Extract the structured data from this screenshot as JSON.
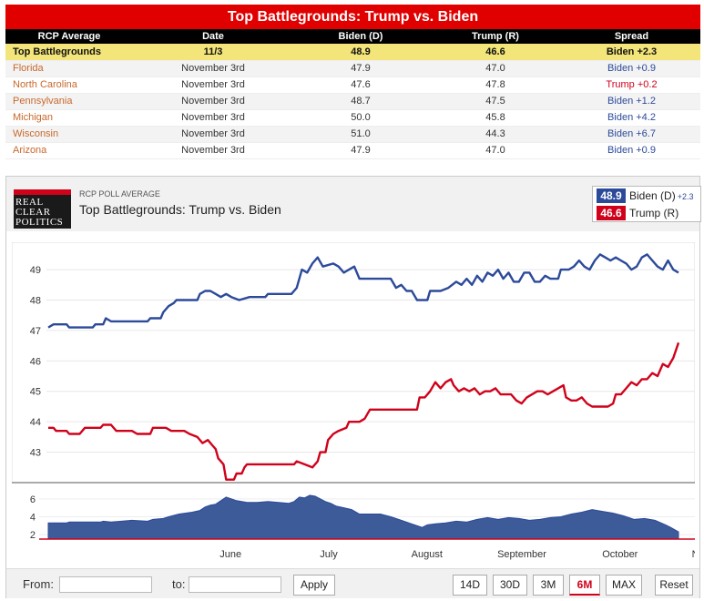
{
  "table": {
    "title": "Top Battlegrounds: Trump vs. Biden",
    "headers": [
      "RCP Average",
      "Date",
      "Biden (D)",
      "Trump (R)",
      "Spread"
    ],
    "average": {
      "race": "Top Battlegrounds",
      "date": "11/3",
      "biden": "48.9",
      "trump": "46.6",
      "spread": "Biden +2.3"
    },
    "rows": [
      {
        "race": "Florida",
        "date": "November 3rd",
        "biden": "47.9",
        "trump": "47.0",
        "spread": "Biden +0.9",
        "leader": "biden"
      },
      {
        "race": "North Carolina",
        "date": "November 3rd",
        "biden": "47.6",
        "trump": "47.8",
        "spread": "Trump +0.2",
        "leader": "trump"
      },
      {
        "race": "Pennsylvania",
        "date": "November 3rd",
        "biden": "48.7",
        "trump": "47.5",
        "spread": "Biden +1.2",
        "leader": "biden"
      },
      {
        "race": "Michigan",
        "date": "November 3rd",
        "biden": "50.0",
        "trump": "45.8",
        "spread": "Biden +4.2",
        "leader": "biden"
      },
      {
        "race": "Wisconsin",
        "date": "November 3rd",
        "biden": "51.0",
        "trump": "44.3",
        "spread": "Biden +6.7",
        "leader": "biden"
      },
      {
        "race": "Arizona",
        "date": "November 3rd",
        "biden": "47.9",
        "trump": "47.0",
        "spread": "Biden +0.9",
        "leader": "biden"
      }
    ]
  },
  "chart_header": {
    "logo": [
      "REAL",
      "CLEAR",
      "POLITICS"
    ],
    "label": "RCP POLL AVERAGE",
    "title": "Top Battlegrounds: Trump vs. Biden",
    "legend": {
      "biden_value": "48.9",
      "biden_label": "Biden (D)",
      "biden_spread": "+2.3",
      "trump_value": "46.6",
      "trump_label": "Trump (R)"
    }
  },
  "controls": {
    "from_label": "From:",
    "to_label": "to:",
    "apply": "Apply",
    "ranges": [
      "14D",
      "30D",
      "3M",
      "6M",
      "MAX"
    ],
    "active_range": "6M",
    "reset": "Reset"
  },
  "colors": {
    "biden": "#2c4a9a",
    "trump": "#d0021b",
    "spread_fill": "#3d5a99"
  },
  "chart_data": {
    "type": "line",
    "title": "Top Battlegrounds: Trump vs. Biden",
    "x_month_labels": [
      "June",
      "July",
      "August",
      "September",
      "October",
      "November"
    ],
    "main_ylim": [
      42,
      49.9
    ],
    "main_yticks": [
      43,
      44,
      45,
      46,
      47,
      48,
      49
    ],
    "spread_ylim": [
      1.5,
      7
    ],
    "spread_yticks": [
      2,
      4,
      6
    ],
    "x_day_range": [
      0,
      183
    ],
    "month_label_days": [
      30,
      61,
      92,
      122,
      153,
      183
    ],
    "series": [
      {
        "name": "Biden (D)",
        "points": [
          [
            0,
            47.1
          ],
          [
            2,
            47.2
          ],
          [
            7,
            47.2
          ],
          [
            8,
            47.1
          ],
          [
            17,
            47.1
          ],
          [
            18,
            47.2
          ],
          [
            21,
            47.2
          ],
          [
            22,
            47.4
          ],
          [
            24,
            47.3
          ],
          [
            38,
            47.3
          ],
          [
            39,
            47.4
          ],
          [
            43,
            47.4
          ],
          [
            44,
            47.6
          ],
          [
            46,
            47.8
          ],
          [
            48,
            47.9
          ],
          [
            49,
            48.0
          ],
          [
            57,
            48.0
          ],
          [
            58,
            48.2
          ],
          [
            60,
            48.3
          ],
          [
            62,
            48.3
          ],
          [
            64,
            48.2
          ],
          [
            66,
            48.1
          ],
          [
            68,
            48.2
          ],
          [
            70,
            48.1
          ],
          [
            73,
            48.0
          ],
          [
            77,
            48.1
          ],
          [
            83,
            48.1
          ],
          [
            84,
            48.2
          ],
          [
            93,
            48.2
          ],
          [
            95,
            48.4
          ],
          [
            97,
            49.0
          ],
          [
            99,
            48.9
          ],
          [
            101,
            49.2
          ],
          [
            103,
            49.4
          ],
          [
            105,
            49.1
          ],
          [
            109,
            49.2
          ],
          [
            111,
            49.1
          ],
          [
            113,
            48.9
          ],
          [
            115,
            49.0
          ],
          [
            117,
            49.1
          ],
          [
            119,
            48.7
          ],
          [
            131,
            48.7
          ],
          [
            133,
            48.4
          ],
          [
            135,
            48.5
          ],
          [
            137,
            48.3
          ],
          [
            139,
            48.3
          ],
          [
            141,
            48.0
          ],
          [
            145,
            48.0
          ],
          [
            146,
            48.3
          ],
          [
            150,
            48.3
          ],
          [
            153,
            48.4
          ],
          [
            156,
            48.6
          ],
          [
            158,
            48.5
          ],
          [
            160,
            48.7
          ],
          [
            162,
            48.5
          ],
          [
            164,
            48.8
          ],
          [
            166,
            48.6
          ],
          [
            168,
            48.9
          ],
          [
            170,
            48.8
          ],
          [
            172,
            49.0
          ],
          [
            174,
            48.7
          ],
          [
            176,
            48.9
          ],
          [
            178,
            48.6
          ],
          [
            180,
            48.6
          ],
          [
            182,
            48.9
          ],
          [
            184,
            48.9
          ],
          [
            186,
            48.6
          ],
          [
            188,
            48.6
          ],
          [
            190,
            48.8
          ],
          [
            192,
            48.7
          ],
          [
            195,
            48.7
          ],
          [
            196,
            49.0
          ],
          [
            199,
            49.0
          ],
          [
            201,
            49.1
          ],
          [
            203,
            49.3
          ],
          [
            205,
            49.1
          ],
          [
            207,
            49.0
          ],
          [
            209,
            49.3
          ],
          [
            211,
            49.5
          ],
          [
            213,
            49.4
          ],
          [
            215,
            49.3
          ],
          [
            217,
            49.4
          ],
          [
            219,
            49.3
          ],
          [
            221,
            49.2
          ],
          [
            223,
            49.0
          ],
          [
            225,
            49.1
          ],
          [
            227,
            49.4
          ],
          [
            229,
            49.5
          ],
          [
            231,
            49.3
          ],
          [
            233,
            49.1
          ],
          [
            235,
            49.0
          ],
          [
            237,
            49.3
          ],
          [
            239,
            49.0
          ],
          [
            241,
            48.9
          ]
        ]
      },
      {
        "name": "Trump (R)",
        "points": [
          [
            0,
            43.8
          ],
          [
            2,
            43.8
          ],
          [
            3,
            43.7
          ],
          [
            7,
            43.7
          ],
          [
            8,
            43.6
          ],
          [
            12,
            43.6
          ],
          [
            14,
            43.8
          ],
          [
            20,
            43.8
          ],
          [
            21,
            43.9
          ],
          [
            24,
            43.9
          ],
          [
            26,
            43.7
          ],
          [
            32,
            43.7
          ],
          [
            34,
            43.6
          ],
          [
            39,
            43.6
          ],
          [
            40,
            43.8
          ],
          [
            45,
            43.8
          ],
          [
            47,
            43.7
          ],
          [
            52,
            43.7
          ],
          [
            54,
            43.6
          ],
          [
            57,
            43.5
          ],
          [
            59,
            43.3
          ],
          [
            61,
            43.4
          ],
          [
            63,
            43.2
          ],
          [
            64,
            43.1
          ],
          [
            65,
            42.8
          ],
          [
            67,
            42.6
          ],
          [
            68,
            42.1
          ],
          [
            71,
            42.1
          ],
          [
            72,
            42.3
          ],
          [
            74,
            42.3
          ],
          [
            75,
            42.5
          ],
          [
            76,
            42.6
          ],
          [
            94,
            42.6
          ],
          [
            95,
            42.7
          ],
          [
            98,
            42.6
          ],
          [
            101,
            42.5
          ],
          [
            103,
            42.7
          ],
          [
            104,
            43.0
          ],
          [
            106,
            43.0
          ],
          [
            107,
            43.4
          ],
          [
            109,
            43.6
          ],
          [
            111,
            43.7
          ],
          [
            114,
            43.8
          ],
          [
            115,
            44.0
          ],
          [
            117,
            44.0
          ],
          [
            119,
            44.0
          ],
          [
            121,
            44.1
          ],
          [
            123,
            44.4
          ],
          [
            141,
            44.4
          ],
          [
            142,
            44.8
          ],
          [
            144,
            44.8
          ],
          [
            146,
            45.0
          ],
          [
            148,
            45.3
          ],
          [
            150,
            45.1
          ],
          [
            152,
            45.3
          ],
          [
            154,
            45.4
          ],
          [
            155,
            45.2
          ],
          [
            157,
            45.0
          ],
          [
            159,
            45.1
          ],
          [
            161,
            45.0
          ],
          [
            163,
            45.1
          ],
          [
            165,
            44.9
          ],
          [
            167,
            45.0
          ],
          [
            169,
            45.0
          ],
          [
            171,
            45.1
          ],
          [
            173,
            44.9
          ],
          [
            175,
            44.9
          ],
          [
            177,
            44.9
          ],
          [
            179,
            44.7
          ],
          [
            181,
            44.6
          ],
          [
            183,
            44.8
          ],
          [
            185,
            44.9
          ],
          [
            187,
            45.0
          ],
          [
            189,
            45.0
          ],
          [
            191,
            44.9
          ],
          [
            193,
            45.0
          ],
          [
            195,
            45.1
          ],
          [
            197,
            45.2
          ],
          [
            198,
            44.8
          ],
          [
            200,
            44.7
          ],
          [
            202,
            44.7
          ],
          [
            204,
            44.8
          ],
          [
            206,
            44.6
          ],
          [
            208,
            44.5
          ],
          [
            214,
            44.5
          ],
          [
            216,
            44.6
          ],
          [
            217,
            44.9
          ],
          [
            219,
            44.9
          ],
          [
            221,
            45.1
          ],
          [
            223,
            45.3
          ],
          [
            225,
            45.2
          ],
          [
            227,
            45.4
          ],
          [
            229,
            45.4
          ],
          [
            231,
            45.6
          ],
          [
            233,
            45.5
          ],
          [
            235,
            45.9
          ],
          [
            237,
            45.8
          ],
          [
            239,
            46.1
          ],
          [
            241,
            46.6
          ]
        ]
      }
    ],
    "spread_series": {
      "name": "Spread (Biden lead)",
      "points": [
        [
          0,
          3.3
        ],
        [
          7,
          3.3
        ],
        [
          8,
          3.4
        ],
        [
          20,
          3.4
        ],
        [
          21,
          3.5
        ],
        [
          24,
          3.4
        ],
        [
          32,
          3.6
        ],
        [
          38,
          3.5
        ],
        [
          40,
          3.7
        ],
        [
          44,
          3.8
        ],
        [
          46,
          4.0
        ],
        [
          50,
          4.3
        ],
        [
          55,
          4.5
        ],
        [
          58,
          4.7
        ],
        [
          60,
          5.1
        ],
        [
          62,
          5.3
        ],
        [
          64,
          5.4
        ],
        [
          66,
          5.8
        ],
        [
          68,
          6.2
        ],
        [
          70,
          6.0
        ],
        [
          72,
          5.8
        ],
        [
          76,
          5.6
        ],
        [
          80,
          5.6
        ],
        [
          84,
          5.7
        ],
        [
          88,
          5.6
        ],
        [
          92,
          5.5
        ],
        [
          94,
          5.7
        ],
        [
          96,
          6.2
        ],
        [
          98,
          6.1
        ],
        [
          100,
          6.4
        ],
        [
          102,
          6.3
        ],
        [
          104,
          6.0
        ],
        [
          106,
          5.7
        ],
        [
          108,
          5.5
        ],
        [
          110,
          5.2
        ],
        [
          113,
          5.0
        ],
        [
          116,
          4.8
        ],
        [
          119,
          4.3
        ],
        [
          123,
          4.3
        ],
        [
          127,
          4.3
        ],
        [
          131,
          4.0
        ],
        [
          135,
          3.6
        ],
        [
          139,
          3.2
        ],
        [
          143,
          2.8
        ],
        [
          145,
          3.1
        ],
        [
          148,
          3.2
        ],
        [
          152,
          3.3
        ],
        [
          156,
          3.5
        ],
        [
          160,
          3.4
        ],
        [
          164,
          3.7
        ],
        [
          168,
          3.9
        ],
        [
          172,
          3.7
        ],
        [
          176,
          3.9
        ],
        [
          180,
          3.8
        ],
        [
          184,
          3.6
        ],
        [
          188,
          3.7
        ],
        [
          192,
          3.9
        ],
        [
          196,
          4.0
        ],
        [
          200,
          4.3
        ],
        [
          204,
          4.5
        ],
        [
          208,
          4.8
        ],
        [
          212,
          4.6
        ],
        [
          216,
          4.4
        ],
        [
          220,
          4.1
        ],
        [
          224,
          3.7
        ],
        [
          228,
          3.8
        ],
        [
          232,
          3.6
        ],
        [
          236,
          3.1
        ],
        [
          238,
          2.8
        ],
        [
          241,
          2.3
        ]
      ]
    }
  }
}
